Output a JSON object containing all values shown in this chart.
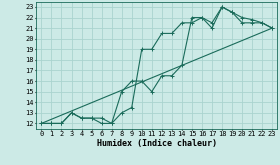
{
  "xlabel": "Humidex (Indice chaleur)",
  "bg_color": "#cceae6",
  "grid_color": "#aad4cf",
  "line_color": "#1a6b5a",
  "xlim": [
    -0.5,
    23.5
  ],
  "ylim": [
    11.5,
    23.5
  ],
  "xticks": [
    0,
    1,
    2,
    3,
    4,
    5,
    6,
    7,
    8,
    9,
    10,
    11,
    12,
    13,
    14,
    15,
    16,
    17,
    18,
    19,
    20,
    21,
    22,
    23
  ],
  "yticks": [
    12,
    13,
    14,
    15,
    16,
    17,
    18,
    19,
    20,
    21,
    22,
    23
  ],
  "curve1_x": [
    0,
    1,
    2,
    3,
    4,
    5,
    6,
    7,
    8,
    9,
    10,
    11,
    12,
    13,
    14,
    15,
    16,
    17,
    18,
    19,
    20,
    21,
    22,
    23
  ],
  "curve1_y": [
    12,
    12,
    12,
    13,
    12.5,
    12.5,
    12,
    12,
    13,
    13.5,
    19,
    19,
    20.5,
    20.5,
    21.5,
    21.5,
    22,
    21.5,
    23,
    22.5,
    21.5,
    21.5,
    21.5,
    21
  ],
  "curve2_x": [
    0,
    1,
    2,
    3,
    4,
    5,
    6,
    7,
    8,
    9,
    10,
    11,
    12,
    13,
    14,
    15,
    16,
    17,
    18,
    19,
    20,
    21,
    22,
    23
  ],
  "curve2_y": [
    12,
    12,
    12,
    13,
    12.5,
    12.5,
    12.5,
    12,
    15,
    16,
    16,
    15,
    16.5,
    16.5,
    17.5,
    22,
    22,
    21,
    23,
    22.5,
    22,
    21.8,
    21.5,
    21
  ],
  "curve3_x": [
    0,
    23
  ],
  "curve3_y": [
    12,
    21
  ],
  "xlabel_fontsize": 6,
  "tick_fontsize": 5
}
